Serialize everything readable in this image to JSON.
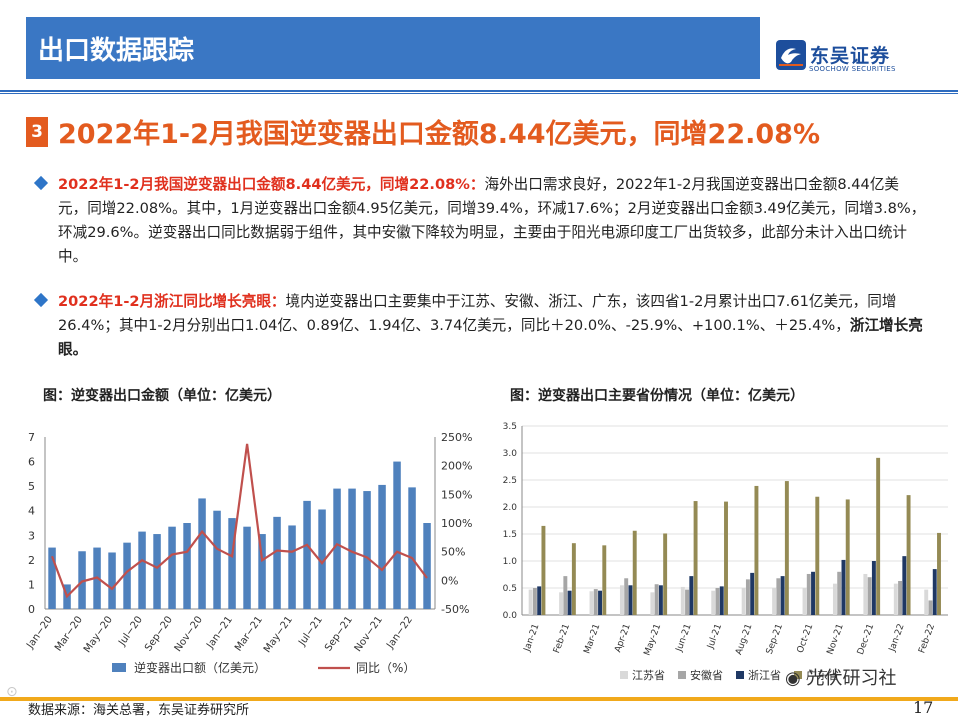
{
  "header": {
    "title": "出口数据跟踪",
    "logo_name": "东吴证券",
    "logo_sub": "SOOCHOW SECURITIES"
  },
  "section": {
    "number": "3",
    "headline": "2022年1-2月我国逆变器出口金额8.44亿美元，同增22.08%"
  },
  "bullets": [
    {
      "lead": "2022年1-2月我国逆变器出口金额8.44亿美元，同增22.08%：",
      "body": "海外出口需求良好，2022年1-2月我国逆变器出口金额8.44亿美元，同增22.08%。其中，1月逆变器出口金额4.95亿美元，同增39.4%，环减17.6%；2月逆变器出口金额3.49亿美元，同增3.8%，环减29.6%。逆变器出口同比数据弱于组件，其中安徽下降较为明显，主要由于阳光电源印度工厂出货较多，此部分未计入出口统计中。"
    },
    {
      "lead": "2022年1-2月浙江同比增长亮眼：",
      "body": "境内逆变器出口主要集中于江苏、安徽、浙江、广东，该四省1-2月累计出口7.61亿美元，同增26.4%；其中1-2月分别出口1.04亿、0.89亿、1.94亿、3.74亿美元，同比＋20.0%、-25.9%、+100.1%、＋25.4%，",
      "tail": "浙江增长亮眼。"
    }
  ],
  "chart_titles": {
    "left": "图：逆变器出口金额（单位：亿美元）",
    "right": "图：逆变器出口主要省份情况（单位：亿美元）"
  },
  "chart_data": [
    {
      "type": "bar",
      "categories": [
        "Jan-20",
        "Feb-20",
        "Mar-20",
        "Apr-20",
        "May-20",
        "Jun-20",
        "Jul-20",
        "Aug-20",
        "Sep-20",
        "Oct-20",
        "Nov-20",
        "Dec-20",
        "Jan-21",
        "Feb-21",
        "Mar-21",
        "Apr-21",
        "May-21",
        "Jun-21",
        "Jul-21",
        "Aug-21",
        "Sep-21",
        "Oct-21",
        "Nov-21",
        "Dec-21",
        "Jan-22",
        "Feb-22"
      ],
      "x_tick_labels": [
        "Jan−20",
        "Mar−20",
        "May−20",
        "Jul−20",
        "Sep−20",
        "Nov−20",
        "Jan−21",
        "Mar−21",
        "May−21",
        "Jul−21",
        "Sep−21",
        "Nov−21",
        "Jan−22"
      ],
      "series": [
        {
          "name": "逆变器出口额（亿美元）",
          "kind": "bar",
          "axis": "left",
          "color": "#4f81bd",
          "values": [
            2.5,
            1.0,
            2.35,
            2.5,
            2.3,
            2.7,
            3.15,
            3.05,
            3.35,
            3.5,
            4.5,
            4.0,
            3.7,
            3.35,
            3.05,
            3.75,
            3.4,
            4.4,
            4.05,
            4.9,
            4.9,
            4.8,
            5.05,
            6.0,
            4.95,
            3.5
          ]
        },
        {
          "name": "同比（%）",
          "kind": "line",
          "axis": "right",
          "color": "#c0504d",
          "values": [
            42,
            -28,
            -2,
            5,
            -15,
            15,
            35,
            22,
            45,
            50,
            85,
            55,
            42,
            238,
            35,
            52,
            50,
            62,
            30,
            63,
            50,
            40,
            18,
            50,
            39,
            4
          ]
        }
      ],
      "y_left": {
        "ylim": [
          0,
          7
        ],
        "ticks": [
          "0",
          "1",
          "2",
          "3",
          "4",
          "5",
          "6",
          "7"
        ]
      },
      "y_right": {
        "ylim": [
          -50,
          250
        ],
        "ticks": [
          "-50%",
          "0%",
          "50%",
          "100%",
          "150%",
          "200%",
          "250%"
        ]
      },
      "legend": "bottom"
    },
    {
      "type": "bar",
      "categories": [
        "Jan-21",
        "Feb-21",
        "Mar-21",
        "Apr-21",
        "May-21",
        "Jun-21",
        "Jul-21",
        "Aug-21",
        "Sep-21",
        "Oct-21",
        "Nov-21",
        "Dec-21",
        "Jan-22",
        "Feb-22"
      ],
      "series": [
        {
          "name": "江苏省",
          "color": "#d9d9d9",
          "values": [
            0.47,
            0.42,
            0.44,
            0.55,
            0.42,
            0.52,
            0.45,
            0.5,
            0.5,
            0.5,
            0.58,
            0.76,
            0.58,
            0.47
          ]
        },
        {
          "name": "安徽省",
          "color": "#a6a6a6",
          "values": [
            0.5,
            0.72,
            0.48,
            0.68,
            0.57,
            0.47,
            0.5,
            0.66,
            0.68,
            0.76,
            0.8,
            0.7,
            0.63,
            0.27
          ]
        },
        {
          "name": "浙江省",
          "color": "#1f3864",
          "values": [
            0.53,
            0.45,
            0.45,
            0.55,
            0.55,
            0.72,
            0.53,
            0.78,
            0.72,
            0.8,
            1.02,
            1.0,
            1.09,
            0.85
          ]
        },
        {
          "name": "广东省",
          "color": "#948a54",
          "values": [
            1.65,
            1.33,
            1.29,
            1.56,
            1.51,
            2.11,
            2.1,
            2.39,
            2.48,
            2.19,
            2.14,
            2.91,
            2.22,
            1.52
          ]
        }
      ],
      "ylim": [
        0,
        3.5
      ],
      "y_ticks": [
        "0.0",
        "0.5",
        "1.0",
        "1.5",
        "2.0",
        "2.5",
        "3.0",
        "3.5"
      ],
      "legend": "bottom"
    }
  ],
  "footer": {
    "source": "数据来源：海关总署，东吴证券研究所",
    "page": "17",
    "watermark": "光伏研习社"
  }
}
